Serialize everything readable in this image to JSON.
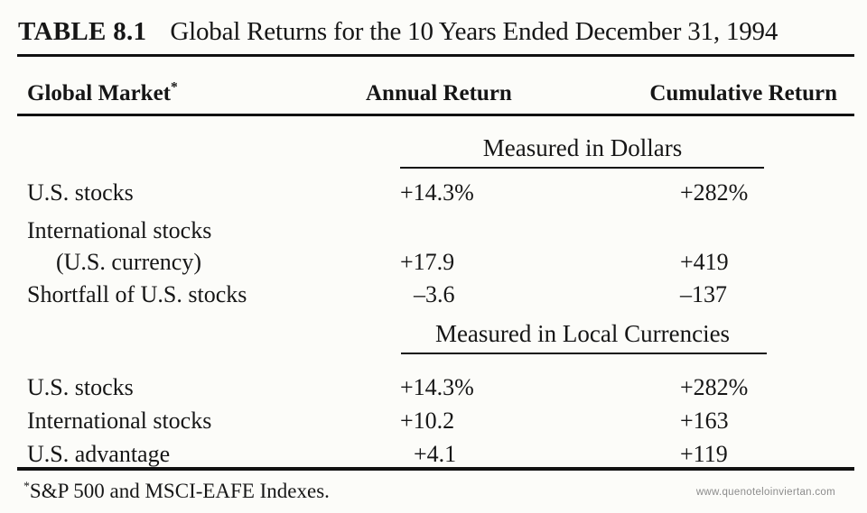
{
  "colors": {
    "ink": "#161616",
    "rule": "#111111",
    "bg": "#fcfcf9",
    "watermark": "#8c8c8c"
  },
  "page": {
    "title_label": "TABLE 8.1",
    "title_text": "Global Returns for the 10 Years Ended December 31, 1994"
  },
  "table": {
    "header": {
      "market": "Global Market",
      "market_note": "*",
      "annual": "Annual Return",
      "cumulative": "Cumulative Return"
    },
    "sections": [
      {
        "heading": "Measured in Dollars",
        "rows": [
          {
            "label": "U.S. stocks",
            "annual": "+14.3%",
            "cumulative": "+282%"
          },
          {
            "label": "International stocks",
            "annual": "",
            "cumulative": ""
          },
          {
            "label": "(U.S. currency)",
            "annual": "+17.9",
            "cumulative": "+419"
          },
          {
            "label": "Shortfall of U.S. stocks",
            "annual": "–3.6",
            "cumulative": "–137"
          }
        ]
      },
      {
        "heading": "Measured in Local Currencies",
        "rows": [
          {
            "label": "U.S. stocks",
            "annual": "+14.3%",
            "cumulative": "+282%"
          },
          {
            "label": "International stocks",
            "annual": "+10.2",
            "cumulative": "+163"
          },
          {
            "label": "U.S. advantage",
            "annual": "+4.1",
            "cumulative": "+119"
          }
        ]
      }
    ]
  },
  "footnote": {
    "marker": "*",
    "text": "S&P 500 and MSCI-EAFE Indexes."
  },
  "watermark": {
    "text": "www.quenoteloinviertan.com"
  }
}
